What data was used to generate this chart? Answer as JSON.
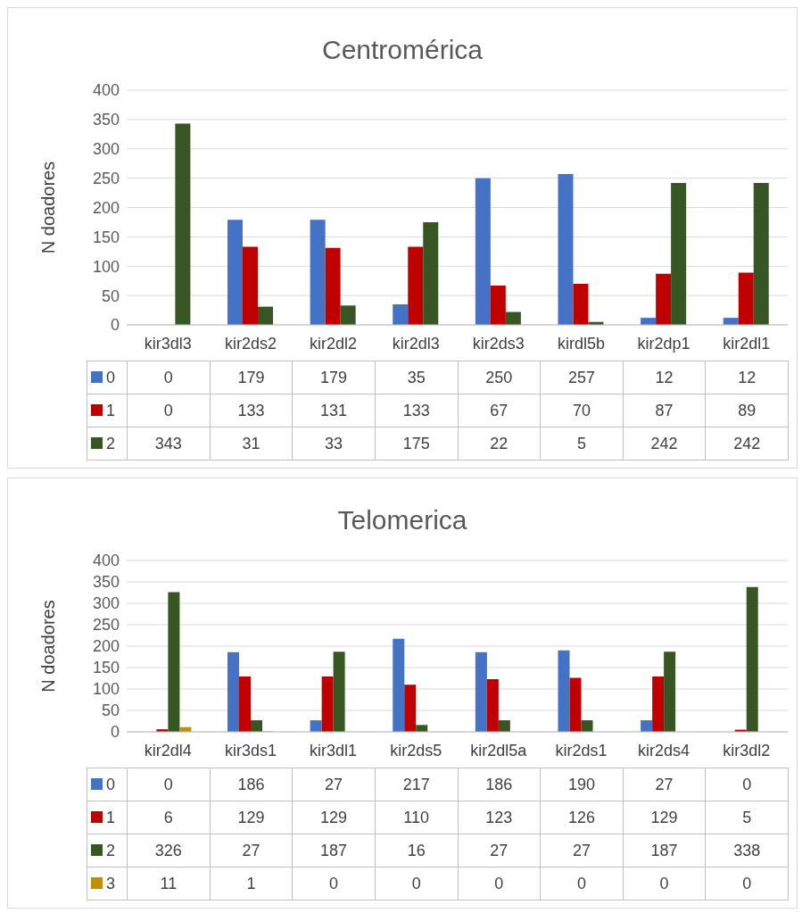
{
  "chart_data": [
    {
      "type": "bar",
      "title": "Centromérica",
      "ylabel": "N doadores",
      "categories": [
        "kir3dl3",
        "kir2ds2",
        "kir2dl2",
        "kir2dl3",
        "kir2ds3",
        "kirdl5b",
        "kir2dp1",
        "kir2dl1"
      ],
      "series": [
        {
          "name": "0",
          "color": "#4472c4",
          "values": [
            0,
            179,
            179,
            35,
            250,
            257,
            12,
            12
          ]
        },
        {
          "name": "1",
          "color": "#c00000",
          "values": [
            0,
            133,
            131,
            133,
            67,
            70,
            87,
            89
          ]
        },
        {
          "name": "2",
          "color": "#375623",
          "values": [
            343,
            31,
            33,
            175,
            22,
            5,
            242,
            242
          ]
        }
      ],
      "ylim": [
        0,
        400
      ],
      "yticks": [
        0,
        50,
        100,
        150,
        200,
        250,
        300,
        350,
        400
      ],
      "grid": "y",
      "legend": "bottom",
      "data_labels": true
    },
    {
      "type": "bar",
      "title": "Telomerica",
      "ylabel": "N doadores",
      "categories": [
        "kir2dl4",
        "kir3ds1",
        "kir3dl1",
        "kir2ds5",
        "kir2dl5a",
        "kir2ds1",
        "kir2ds4",
        "kir3dl2"
      ],
      "series": [
        {
          "name": "0",
          "color": "#4472c4",
          "values": [
            0,
            186,
            27,
            217,
            186,
            190,
            27,
            0
          ]
        },
        {
          "name": "1",
          "color": "#c00000",
          "values": [
            6,
            129,
            129,
            110,
            123,
            126,
            129,
            5
          ]
        },
        {
          "name": "2",
          "color": "#375623",
          "values": [
            326,
            27,
            187,
            16,
            27,
            27,
            187,
            338
          ]
        },
        {
          "name": "3",
          "color": "#bf9000",
          "values": [
            11,
            1,
            0,
            0,
            0,
            0,
            0,
            0
          ]
        }
      ],
      "ylim": [
        0,
        400
      ],
      "yticks": [
        0,
        50,
        100,
        150,
        200,
        250,
        300,
        350,
        400
      ],
      "grid": "y",
      "legend": "bottom",
      "data_labels": true
    }
  ]
}
